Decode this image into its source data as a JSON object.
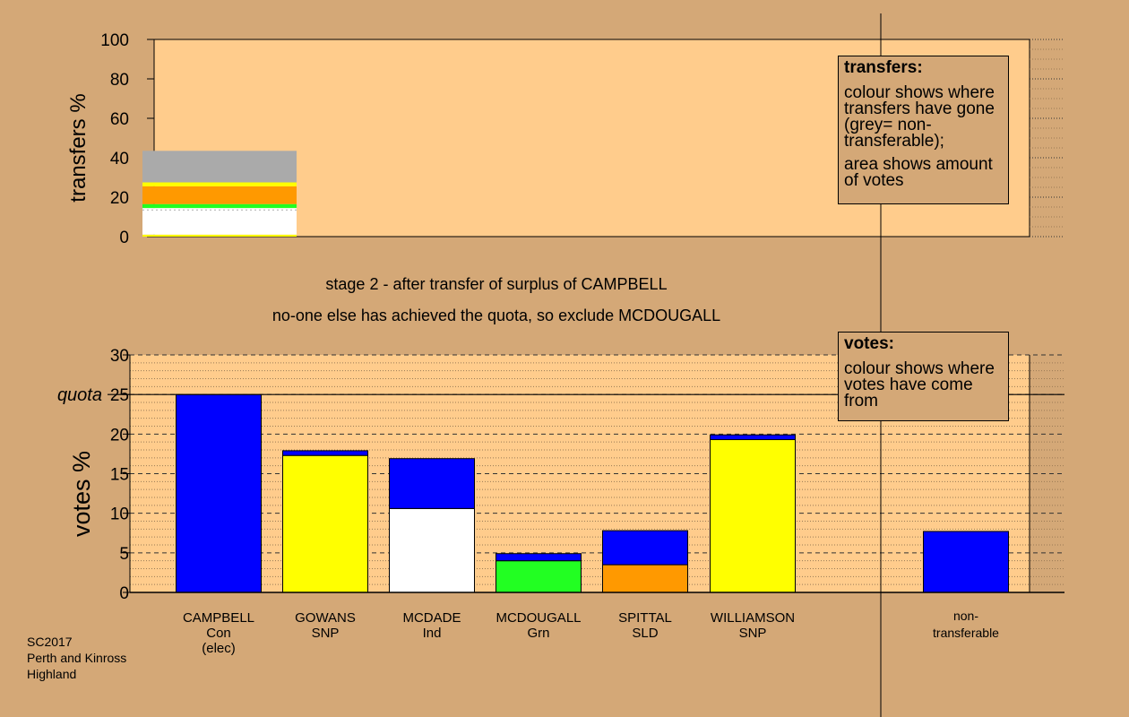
{
  "chart_data": [
    {
      "type": "bar",
      "id": "transfers",
      "ylabel": "transfers %",
      "ylim": [
        0,
        100
      ],
      "yticks": [
        0,
        20,
        40,
        60,
        80,
        100
      ],
      "grid": true,
      "stack": [
        {
          "color": "#ffff00",
          "value": 1
        },
        {
          "color": "#ffffff",
          "value": 13.5
        },
        {
          "color": "#22ff22",
          "value": 2
        },
        {
          "color": "#ff9900",
          "value": 9
        },
        {
          "color": "#ffff00",
          "value": 2
        },
        {
          "color": "#aaaaaa",
          "value": 16
        }
      ]
    },
    {
      "type": "bar",
      "id": "votes",
      "ylabel": "votes %",
      "ylim": [
        0,
        30
      ],
      "yticks": [
        0,
        5,
        10,
        15,
        20,
        25,
        30
      ],
      "quota": 25,
      "quota_label": "quota",
      "grid": true,
      "categories": [
        {
          "name": "CAMPBELL",
          "party": "Con",
          "note": "(elec)",
          "segments": [
            {
              "color": "#0000ff",
              "value": 25
            }
          ]
        },
        {
          "name": "GOWANS",
          "party": "SNP",
          "note": "",
          "segments": [
            {
              "color": "#ffff00",
              "value": 17.3
            },
            {
              "color": "#0000ff",
              "value": 0.6
            }
          ]
        },
        {
          "name": "MCDADE",
          "party": "Ind",
          "note": "",
          "segments": [
            {
              "color": "#ffffff",
              "value": 10.6
            },
            {
              "color": "#0000ff",
              "value": 6.3
            }
          ]
        },
        {
          "name": "MCDOUGALL",
          "party": "Grn",
          "note": "",
          "segments": [
            {
              "color": "#22ff22",
              "value": 4
            },
            {
              "color": "#0000ff",
              "value": 0.9
            }
          ]
        },
        {
          "name": "SPITTAL",
          "party": "SLD",
          "note": "",
          "segments": [
            {
              "color": "#ff9900",
              "value": 3.5
            },
            {
              "color": "#0000ff",
              "value": 4.3
            }
          ]
        },
        {
          "name": "WILLIAMSON",
          "party": "SNP",
          "note": "",
          "segments": [
            {
              "color": "#ffff00",
              "value": 19.3
            },
            {
              "color": "#0000ff",
              "value": 0.6
            }
          ]
        }
      ],
      "nontransferable": {
        "label1": "non-",
        "label2": "transferable",
        "segments": [
          {
            "color": "#0000ff",
            "value": 7.7
          }
        ]
      }
    }
  ],
  "title": {
    "line1": "stage 2 - after transfer of surplus of CAMPBELL",
    "line2": "no-one else has achieved the quota, so exclude MCDOUGALL"
  },
  "legend_transfers": {
    "title": "transfers:",
    "text1": "colour shows where transfers have gone (grey= non-transferable);",
    "text2": "area shows amount of votes"
  },
  "legend_votes": {
    "title": "votes:",
    "text1": "colour shows where votes have come from"
  },
  "footer": {
    "line1": "SC2017",
    "line2": "Perth and Kinross",
    "line3": "Highland"
  },
  "colors": {
    "background": "#d4a877",
    "plot": "#ffcc8c"
  }
}
